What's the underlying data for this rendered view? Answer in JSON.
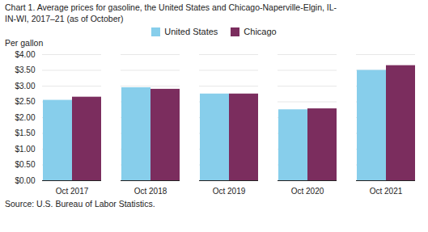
{
  "chart_data": {
    "type": "bar",
    "title": "Chart 1. Average prices for gasoline, the United States and Chicago-Naperville-Elgin, IL-\nIN-WI, 2017–21 (as of October)",
    "ylabel": "Per gallon",
    "source": "Source: U.S. Bureau of Labor Statistics.",
    "categories": [
      "Oct 2017",
      "Oct 2018",
      "Oct 2019",
      "Oct 2020",
      "Oct 2021"
    ],
    "series": [
      {
        "name": "United States",
        "color": "#87CEEB",
        "values": [
          2.55,
          2.95,
          2.75,
          2.25,
          3.5
        ]
      },
      {
        "name": "Chicago",
        "color": "#7B2D5E",
        "values": [
          2.65,
          2.9,
          2.75,
          2.28,
          3.65
        ]
      }
    ],
    "ylim": [
      0,
      4.0
    ],
    "yticks": [
      {
        "value": 0.0,
        "label": "$0.00"
      },
      {
        "value": 0.5,
        "label": "$0.50"
      },
      {
        "value": 1.0,
        "label": "$1.00"
      },
      {
        "value": 1.5,
        "label": "$1.50"
      },
      {
        "value": 2.0,
        "label": "$2.00"
      },
      {
        "value": 2.5,
        "label": "$2.50"
      },
      {
        "value": 3.0,
        "label": "$3.00"
      },
      {
        "value": 3.5,
        "label": "$3.50"
      },
      {
        "value": 4.0,
        "label": "$4.00"
      }
    ],
    "grid": true,
    "legend": "top"
  }
}
